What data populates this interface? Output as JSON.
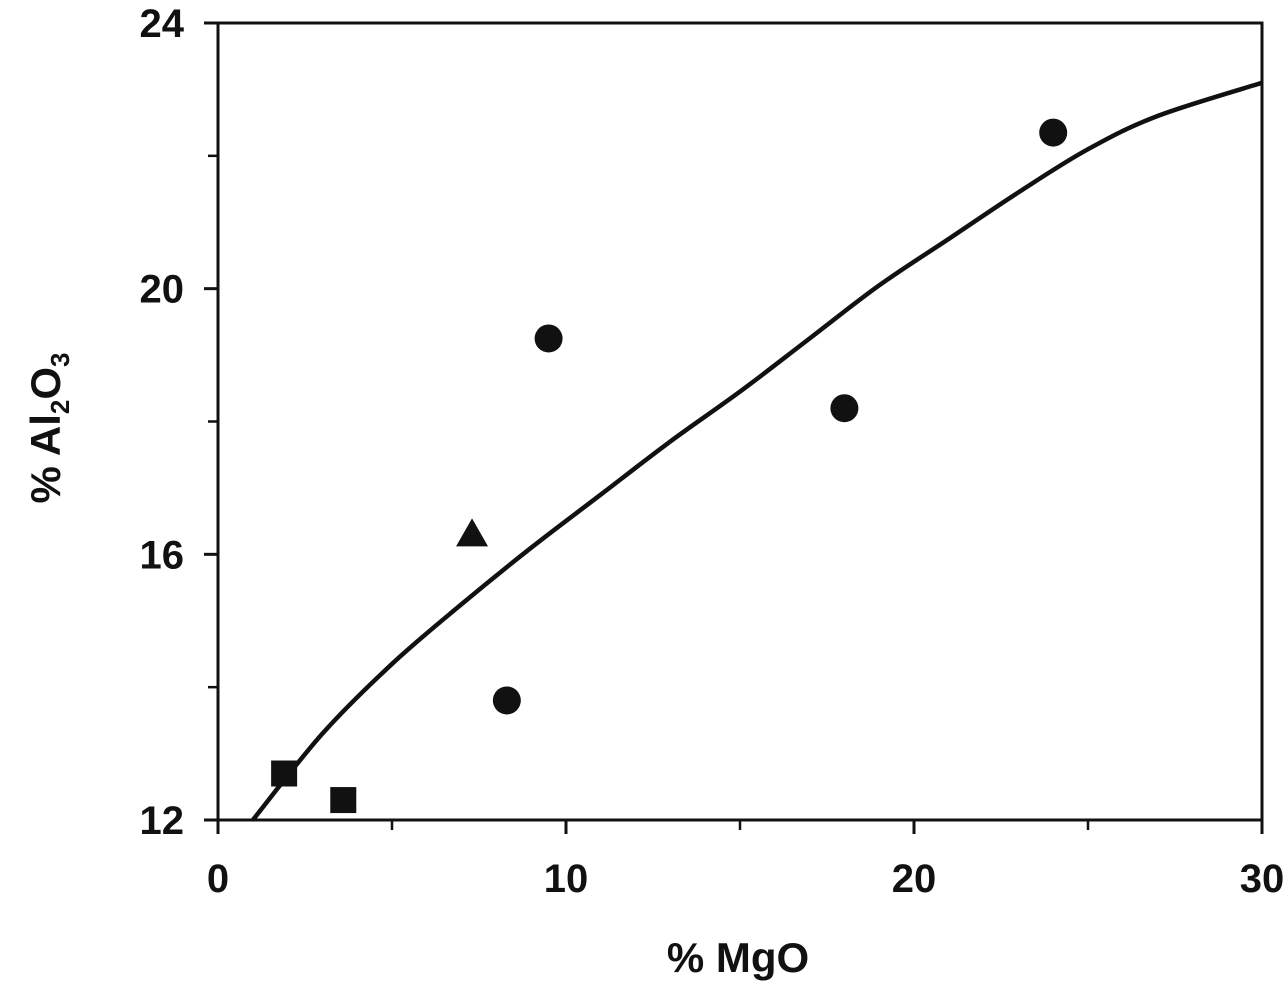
{
  "chart_data": {
    "type": "scatter",
    "title": "",
    "xlabel": "% MgO",
    "ylabel": {
      "prefix": "% Al",
      "sub1": "2",
      "mid": "O",
      "sub2": "3"
    },
    "xlim": [
      0,
      30
    ],
    "ylim": [
      12,
      24
    ],
    "x_major_ticks": [
      0,
      10,
      20,
      30
    ],
    "x_minor_ticks": [
      5,
      15,
      25
    ],
    "y_major_ticks": [
      12,
      16,
      20,
      24
    ],
    "y_minor_ticks": [
      14,
      18,
      22
    ],
    "grid": false,
    "legend": "none",
    "series": [
      {
        "marker": "circle",
        "points": [
          {
            "x": 8.3,
            "y": 13.8
          },
          {
            "x": 9.5,
            "y": 19.25
          },
          {
            "x": 18.0,
            "y": 18.2
          },
          {
            "x": 24.0,
            "y": 22.35
          }
        ]
      },
      {
        "marker": "triangle",
        "points": [
          {
            "x": 7.3,
            "y": 16.3
          }
        ]
      },
      {
        "marker": "square",
        "points": [
          {
            "x": 1.9,
            "y": 12.7
          },
          {
            "x": 3.6,
            "y": 12.3
          }
        ]
      }
    ],
    "fit_curve": {
      "type": "line",
      "x": [
        1.0,
        3.0,
        5.0,
        7.0,
        9.0,
        11.0,
        13.0,
        15.0,
        17.0,
        19.0,
        21.0,
        23.0,
        25.0,
        27.0,
        30.0
      ],
      "y": [
        12.0,
        13.3,
        14.35,
        15.25,
        16.1,
        16.9,
        17.7,
        18.45,
        19.25,
        20.05,
        20.75,
        21.45,
        22.1,
        22.6,
        23.1
      ]
    },
    "colors": {
      "ink": "#111111",
      "background": "#ffffff"
    }
  }
}
